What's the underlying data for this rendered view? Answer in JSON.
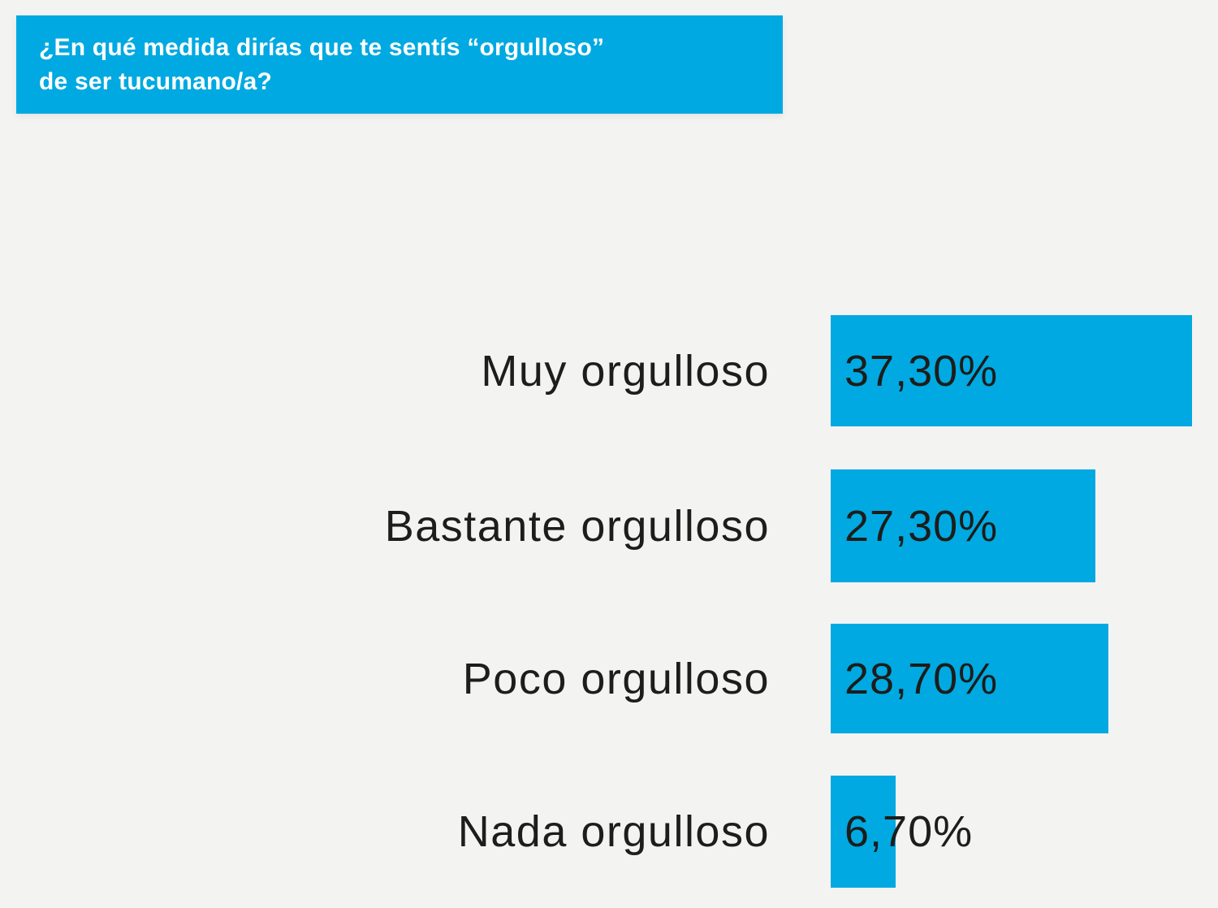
{
  "header": {
    "line1": "¿En qué medida dirías que te sentís “orgulloso”",
    "line2": "de ser tucumano/a?"
  },
  "colors": {
    "accent": "#00A9E1",
    "background": "#F3F3F2",
    "text": "#1D1D1B",
    "title_text": "#FFFFFF"
  },
  "chart_data": {
    "type": "bar",
    "orientation": "horizontal",
    "title": "¿En qué medida dirías que te sentís “orgulloso” de ser tucumano/a?",
    "categories": [
      "Muy orgulloso",
      "Bastante orgulloso",
      "Poco orgulloso",
      "Nada orgulloso"
    ],
    "values": [
      37.3,
      27.3,
      28.7,
      6.7
    ],
    "value_labels": [
      "37,30%",
      "27,30%",
      "28,70%",
      "6,70%"
    ],
    "value_label_position": "inside-start",
    "xlabel": "",
    "ylabel": "",
    "xlim": [
      0,
      40
    ],
    "grid": false,
    "legend": false,
    "axis_ticks_visible": false,
    "bar_color": "#00A9E1"
  }
}
